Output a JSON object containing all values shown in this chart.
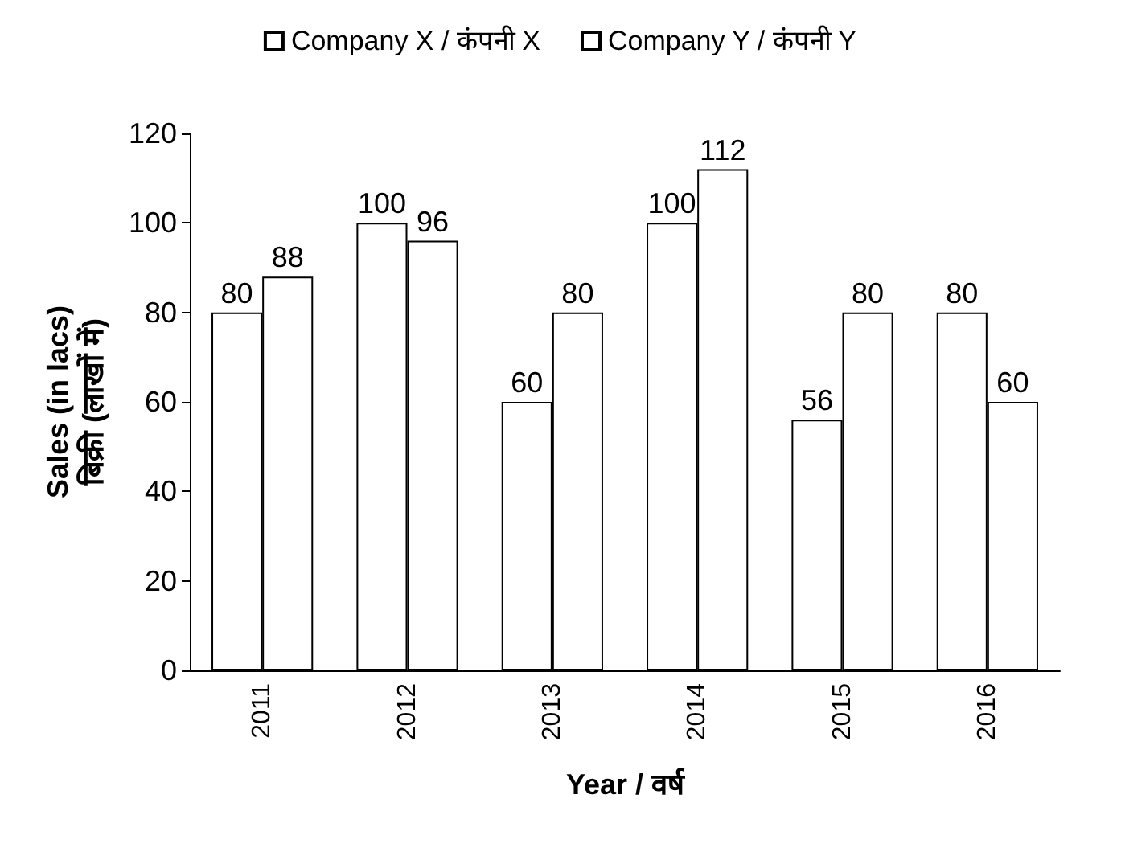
{
  "chart_data": {
    "type": "bar",
    "categories": [
      "2011",
      "2012",
      "2013",
      "2014",
      "2015",
      "2016"
    ],
    "series": [
      {
        "name": "Company X / कंपनी X",
        "color": "#ffffff",
        "values": [
          80,
          100,
          60,
          100,
          56,
          80
        ]
      },
      {
        "name": "Company Y / कंपनी Y",
        "color": "#ffffff",
        "values": [
          88,
          96,
          80,
          112,
          80,
          60
        ]
      }
    ],
    "xlabel": "Year / वर्ष",
    "ylabel": "Sales (in lacs)\nबिक्री (लाखों में)",
    "ylim": [
      0,
      120
    ],
    "yticks": [
      0,
      20,
      40,
      60,
      80,
      100,
      120
    ],
    "data_labels": true,
    "legend": "top",
    "grid": false
  }
}
